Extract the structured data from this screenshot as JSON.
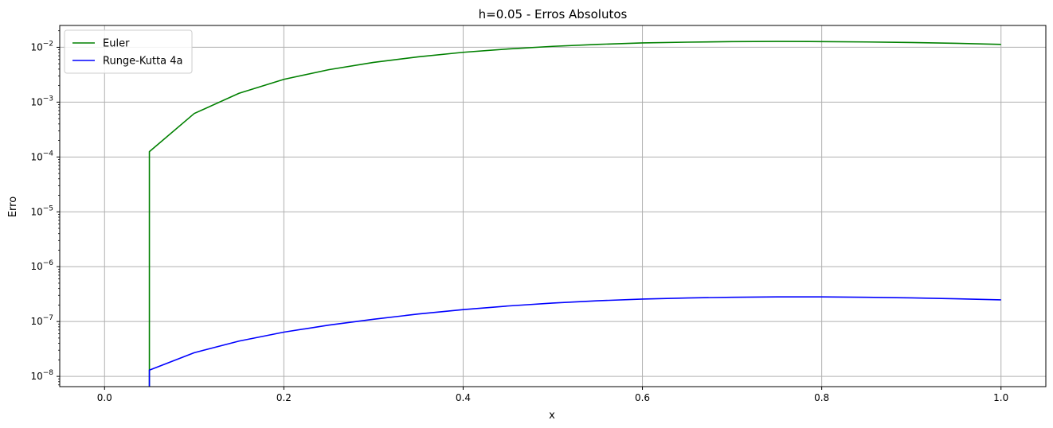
{
  "chart_data": {
    "type": "line",
    "title": "h=0.05 - Erros Absolutos",
    "xlabel": "x",
    "ylabel": "Erro",
    "xscale": "linear",
    "yscale": "log",
    "xlim": [
      -0.05,
      1.05
    ],
    "ylim": [
      6.5e-09,
      0.025
    ],
    "grid": true,
    "legend_position": "top-left",
    "x_ticks": [
      0.0,
      0.2,
      0.4,
      0.6,
      0.8,
      1.0
    ],
    "x_tick_labels": [
      "0.0",
      "0.2",
      "0.4",
      "0.6",
      "0.8",
      "1.0"
    ],
    "y_ticks": [
      1e-08,
      1e-07,
      1e-06,
      1e-05,
      0.0001,
      0.001,
      0.01
    ],
    "y_tick_bases": [
      "10",
      "10",
      "10",
      "10",
      "10",
      "10",
      "10"
    ],
    "y_tick_exponents": [
      "−8",
      "−7",
      "−6",
      "−5",
      "−4",
      "−3",
      "−2"
    ],
    "x": [
      0.05,
      0.1,
      0.15,
      0.2,
      0.25,
      0.3,
      0.35,
      0.4,
      0.45,
      0.5,
      0.55,
      0.6,
      0.65,
      0.7,
      0.75,
      0.8,
      0.85,
      0.9,
      0.95,
      1.0
    ],
    "series": [
      {
        "name": "Euler",
        "color": "#008000",
        "values": [
          0.000125,
          0.00062,
          0.00145,
          0.0026,
          0.0039,
          0.0053,
          0.0067,
          0.0081,
          0.0093,
          0.0104,
          0.0113,
          0.012,
          0.0124,
          0.0127,
          0.0128,
          0.0127,
          0.0125,
          0.0122,
          0.0118,
          0.0113
        ]
      },
      {
        "name": "Runge-Kutta 4a",
        "color": "#0000ff",
        "values": [
          1.3e-08,
          2.7e-08,
          4.4e-08,
          6.4e-08,
          8.6e-08,
          1.1e-07,
          1.37e-07,
          1.65e-07,
          1.92e-07,
          2.17e-07,
          2.39e-07,
          2.57e-07,
          2.69e-07,
          2.77e-07,
          2.81e-07,
          2.81e-07,
          2.77e-07,
          2.7e-07,
          2.6e-07,
          2.48e-07
        ]
      }
    ]
  }
}
